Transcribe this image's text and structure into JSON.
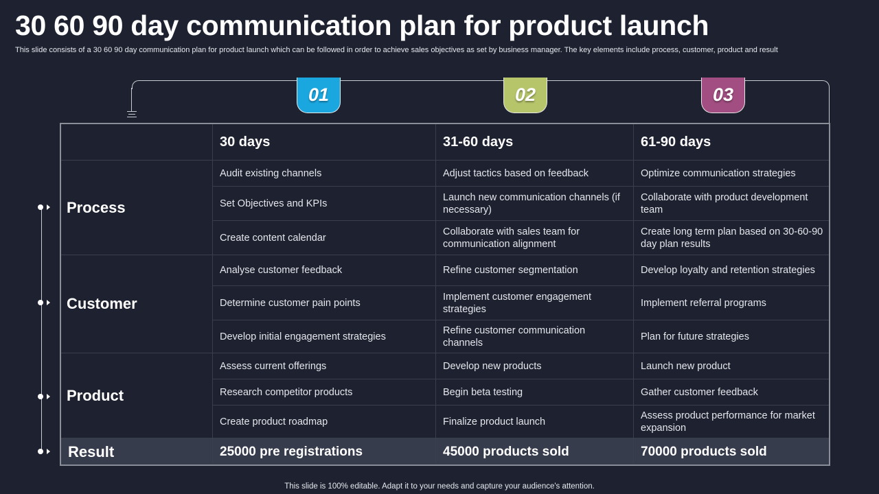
{
  "title": "30 60 90 day communication plan for product launch",
  "subtitle": "This slide consists of a 30 60 90 day communication plan for product launch which can be followed in order to achieve sales objectives as set by business manager. The key elements include process, customer, product and result",
  "colors": {
    "background": "#1e2230",
    "tab1": "#1aa7e0",
    "tab2": "#b6c46a",
    "tab3": "#a24e82",
    "result_row": "#373c4d"
  },
  "tabs": [
    "01",
    "02",
    "03"
  ],
  "headers": [
    "30 days",
    "31-60 days",
    "61-90 days"
  ],
  "sections": {
    "process": {
      "label": "Process",
      "rows": [
        [
          "Audit existing channels",
          "Adjust tactics based on feedback",
          "Optimize communication strategies"
        ],
        [
          "Set Objectives and KPIs",
          "Launch new communication channels (if necessary)",
          "Collaborate with product development team"
        ],
        [
          "Create content calendar",
          "Collaborate with sales team for communication alignment",
          "Create long term plan based on 30-60-90 day plan results"
        ]
      ]
    },
    "customer": {
      "label": "Customer",
      "rows": [
        [
          "Analyse customer feedback",
          "Refine customer segmentation",
          "Develop loyalty and retention strategies"
        ],
        [
          "Determine customer pain points",
          "Implement customer engagement strategies",
          "Implement referral programs"
        ],
        [
          "Develop initial engagement strategies",
          "Refine customer communication channels",
          "Plan for future strategies"
        ]
      ]
    },
    "product": {
      "label": "Product",
      "rows": [
        [
          "Assess current offerings",
          "Develop new products",
          "Launch new product"
        ],
        [
          "Research competitor products",
          "Begin beta testing",
          "Gather customer feedback"
        ],
        [
          "Create product roadmap",
          "Finalize product launch",
          "Assess product performance for market expansion"
        ]
      ]
    }
  },
  "result": {
    "label": "Result",
    "values": [
      "25000 pre registrations",
      "45000 products sold",
      "70000 products sold"
    ]
  },
  "footer": "This slide is 100% editable. Adapt it to your needs and capture your audience's attention."
}
